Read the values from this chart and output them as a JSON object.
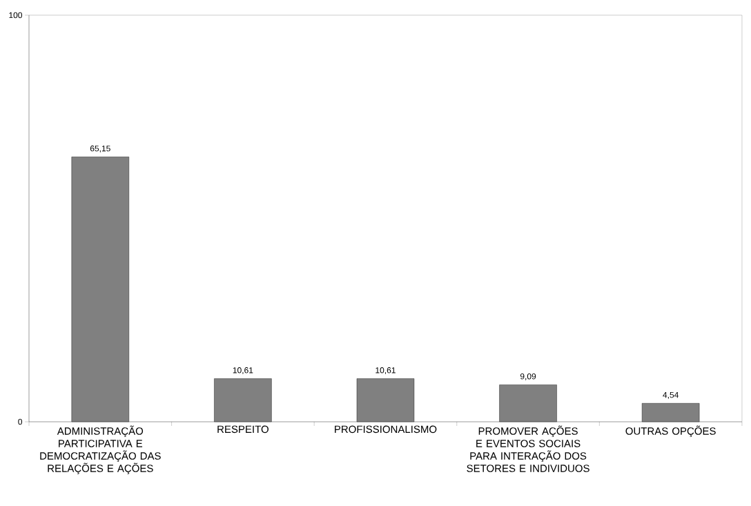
{
  "chart_data": {
    "type": "bar",
    "categories": [
      "ADMINISTRAÇÃO PARTICIPATIVA E DEMOCRATIZAÇÃO DAS RELAÇÕES E AÇÕES",
      "RESPEITO",
      "PROFISSIONALISMO",
      "PROMOVER AÇÕES E EVENTOS SOCIAIS PARA INTERAÇÃO DOS SETORES E INDIVIDUOS",
      "OUTRAS OPÇÕES"
    ],
    "values": [
      65.15,
      10.61,
      10.61,
      9.09,
      4.54
    ],
    "value_labels": [
      "65,15",
      "10,61",
      "10,61",
      "9,09",
      "4,54"
    ],
    "color": "#808080",
    "ylim": [
      0,
      100
    ],
    "yticks": [
      0,
      100
    ]
  }
}
